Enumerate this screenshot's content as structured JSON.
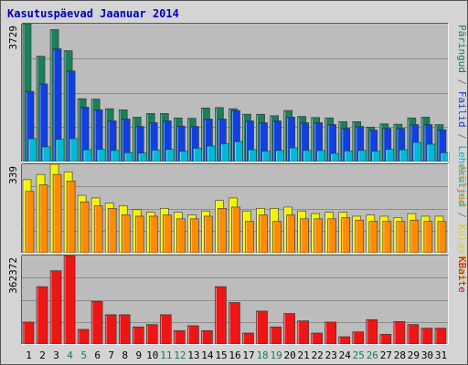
{
  "title": "Kasutuspäevad Jaanuar 2014",
  "chart_data": {
    "type": "bar",
    "title": "Kasutuspäevad Jaanuar 2014",
    "categories": [
      "1",
      "2",
      "3",
      "4",
      "5",
      "6",
      "7",
      "8",
      "9",
      "10",
      "11",
      "12",
      "13",
      "14",
      "15",
      "16",
      "17",
      "18",
      "19",
      "20",
      "21",
      "22",
      "23",
      "24",
      "25",
      "26",
      "27",
      "28",
      "29",
      "30",
      "31"
    ],
    "weekend_days": [
      "4",
      "5",
      "11",
      "12",
      "18",
      "19",
      "25",
      "26"
    ],
    "colors": {
      "weekday_tick": "#000000",
      "weekend_tick": "#1a7a4a",
      "label_separator": "#777777"
    },
    "panels": [
      {
        "id": "top",
        "ymax_label": "3729",
        "ylim": [
          0,
          3729
        ],
        "right_labels": [
          {
            "text": "Päringud",
            "color": "#1b7f5a"
          },
          {
            "text": "Failid",
            "color": "#1040e0"
          },
          {
            "text": "Leheküljed",
            "color": "#00b8d8"
          },
          {
            "text": "Külastused",
            "color": "#d8d800"
          }
        ],
        "series": [
          {
            "name": "Päringud",
            "color": "#1b7f5a",
            "values": [
              3729,
              2850,
              3570,
              3000,
              1700,
              1690,
              1430,
              1400,
              1200,
              1300,
              1300,
              1180,
              1170,
              1450,
              1460,
              1430,
              1280,
              1280,
              1240,
              1380,
              1220,
              1190,
              1180,
              1080,
              1080,
              930,
              1020,
              1010,
              1180,
              1200,
              1000
            ]
          },
          {
            "name": "Failid",
            "color": "#1040e0",
            "values": [
              1900,
              2100,
              3050,
              2450,
              1470,
              1400,
              1100,
              1150,
              950,
              1050,
              1100,
              960,
              950,
              1150,
              1150,
              1380,
              1100,
              1050,
              1100,
              1200,
              1050,
              1050,
              1000,
              900,
              950,
              850,
              900,
              900,
              1000,
              1000,
              860
            ]
          },
          {
            "name": "Leheküljed",
            "color": "#00b8d8",
            "values": [
              620,
              400,
              600,
              620,
              320,
              330,
              300,
              240,
              230,
              310,
              330,
              280,
              360,
              420,
              480,
              540,
              320,
              280,
              300,
              370,
              300,
              300,
              220,
              290,
              300,
              280,
              330,
              320,
              520,
              470,
              240
            ]
          }
        ]
      },
      {
        "id": "mid",
        "ymax_label": "339",
        "ylim": [
          0,
          339
        ],
        "right_labels": [
          {
            "text": "Aruteid",
            "color": "#ff8c00"
          }
        ],
        "series": [
          {
            "name": "Külastused",
            "color": "#f4f400",
            "values": [
              280,
              300,
              339,
              310,
              220,
              210,
              190,
              180,
              165,
              155,
              170,
              155,
              145,
              160,
              200,
              210,
              160,
              170,
              170,
              175,
              160,
              150,
              155,
              155,
              140,
              145,
              140,
              135,
              150,
              140,
              140
            ]
          },
          {
            "name": "Aruteid",
            "color": "#ff8c00",
            "values": [
              235,
              260,
              300,
              275,
              195,
              180,
              170,
              145,
              140,
              140,
              145,
              130,
              130,
              140,
              170,
              175,
              120,
              145,
              120,
              145,
              130,
              130,
              130,
              135,
              125,
              120,
              120,
              120,
              125,
              120,
              120
            ]
          }
        ]
      },
      {
        "id": "bot",
        "ymax_label": "362372",
        "ylim": [
          0,
          362372
        ],
        "right_labels": [
          {
            "text": "KBaite",
            "color": "#e00000"
          }
        ],
        "series": [
          {
            "name": "KBaite",
            "color": "#ee1515",
            "values": [
              90000,
              235000,
              300000,
              362372,
              60000,
              175000,
              120000,
              120000,
              70000,
              80000,
              120000,
              55000,
              75000,
              55000,
              235000,
              170000,
              45000,
              135000,
              70000,
              125000,
              95000,
              45000,
              90000,
              30000,
              50000,
              100000,
              40000,
              92000,
              80000,
              65000,
              65000
            ]
          }
        ]
      }
    ]
  }
}
